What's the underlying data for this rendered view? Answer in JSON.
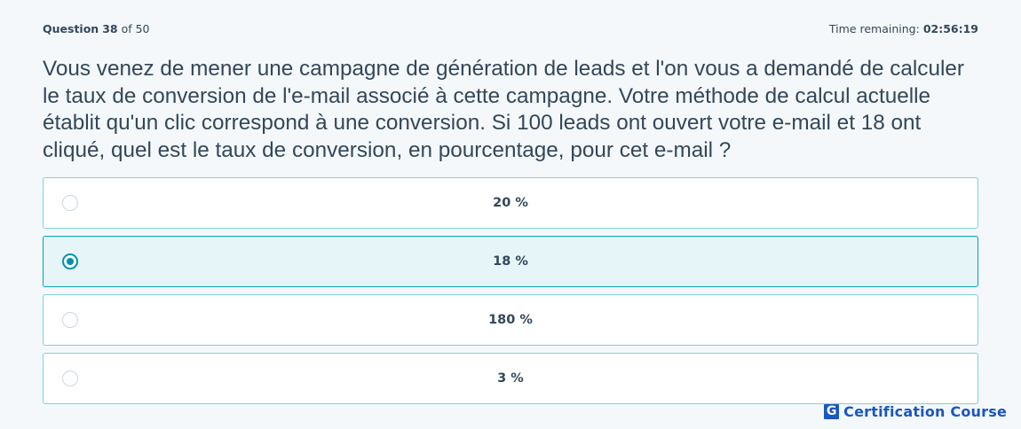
{
  "header": {
    "question_word": "Question",
    "question_number": "38",
    "of_text": "of 50",
    "time_label": "Time remaining:",
    "time_value": "02:56:19"
  },
  "question": {
    "text": "Vous venez de mener une campagne de génération de leads et l'on vous a demandé de calculer le taux de conversion de l'e-mail associé à cette campagne. Votre méthode de calcul actuelle établit qu'un clic correspond à une conversion. Si 100 leads ont ouvert votre e-mail et 18 ont cliqué, quel est le taux de conversion, en pourcentage, pour cet e-mail ?"
  },
  "answers": [
    {
      "label": "20 %",
      "selected": false
    },
    {
      "label": "18 %",
      "selected": true
    },
    {
      "label": "180 %",
      "selected": false
    },
    {
      "label": "3 %",
      "selected": false
    }
  ],
  "brand": {
    "mark": "G",
    "name": "Certification Course"
  },
  "colors": {
    "text": "#33475b",
    "accent": "#00a4bd",
    "selected_bg": "#e5f5f8",
    "brand": "#1a56c4"
  }
}
